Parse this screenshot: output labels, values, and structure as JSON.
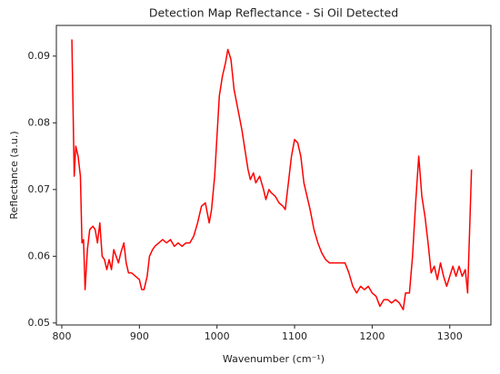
{
  "chart_data": {
    "type": "line",
    "title": "Detection Map Reflectance - Si Oil Detected",
    "x_label": "Wavenumber (cm⁻¹)",
    "y_label": "Reflectance (a.u.)",
    "color": "#ff0000",
    "x": [
      813,
      816,
      818,
      821,
      824,
      826,
      828,
      830,
      833,
      836,
      840,
      843,
      846,
      849,
      852,
      855,
      858,
      861,
      864,
      867,
      870,
      873,
      876,
      880,
      883,
      886,
      890,
      895,
      900,
      903,
      906,
      910,
      913,
      917,
      920,
      925,
      930,
      935,
      940,
      945,
      950,
      955,
      960,
      965,
      970,
      975,
      980,
      985,
      990,
      993,
      997,
      1000,
      1003,
      1007,
      1011,
      1014,
      1018,
      1022,
      1027,
      1032,
      1036,
      1040,
      1043,
      1047,
      1050,
      1055,
      1060,
      1063,
      1067,
      1070,
      1075,
      1080,
      1085,
      1088,
      1092,
      1096,
      1100,
      1104,
      1108,
      1112,
      1116,
      1120,
      1125,
      1130,
      1135,
      1140,
      1145,
      1150,
      1155,
      1160,
      1165,
      1170,
      1175,
      1180,
      1185,
      1190,
      1195,
      1200,
      1205,
      1210,
      1215,
      1220,
      1225,
      1230,
      1235,
      1240,
      1243,
      1248,
      1252,
      1256,
      1260,
      1264,
      1268,
      1272,
      1276,
      1280,
      1284,
      1288,
      1292,
      1296,
      1300,
      1304,
      1308,
      1312,
      1316,
      1320,
      1323,
      1326,
      1328
    ],
    "values": [
      0.0925,
      0.072,
      0.0765,
      0.075,
      0.072,
      0.062,
      0.0625,
      0.055,
      0.061,
      0.064,
      0.0645,
      0.064,
      0.062,
      0.065,
      0.06,
      0.0595,
      0.058,
      0.0595,
      0.058,
      0.061,
      0.06,
      0.059,
      0.0605,
      0.062,
      0.059,
      0.0575,
      0.0575,
      0.057,
      0.0565,
      0.055,
      0.055,
      0.057,
      0.06,
      0.061,
      0.0615,
      0.062,
      0.0625,
      0.062,
      0.0625,
      0.0615,
      0.062,
      0.0615,
      0.062,
      0.062,
      0.063,
      0.065,
      0.0675,
      0.068,
      0.065,
      0.067,
      0.072,
      0.078,
      0.084,
      0.087,
      0.089,
      0.091,
      0.0895,
      0.085,
      0.082,
      0.079,
      0.076,
      0.073,
      0.0715,
      0.0725,
      0.071,
      0.072,
      0.07,
      0.0685,
      0.07,
      0.0695,
      0.069,
      0.068,
      0.0675,
      0.067,
      0.071,
      0.075,
      0.0775,
      0.077,
      0.075,
      0.071,
      0.069,
      0.067,
      0.064,
      0.062,
      0.0605,
      0.0595,
      0.059,
      0.059,
      0.059,
      0.059,
      0.059,
      0.0575,
      0.0555,
      0.0545,
      0.0555,
      0.055,
      0.0555,
      0.0545,
      0.054,
      0.0525,
      0.0535,
      0.0535,
      0.053,
      0.0535,
      0.053,
      0.052,
      0.0545,
      0.0545,
      0.06,
      0.068,
      0.075,
      0.069,
      0.066,
      0.062,
      0.0575,
      0.0585,
      0.0565,
      0.059,
      0.057,
      0.0555,
      0.057,
      0.0585,
      0.057,
      0.0585,
      0.057,
      0.058,
      0.0545,
      0.0655,
      0.073
    ],
    "xlim": [
      793,
      1353
    ],
    "ylim": [
      0.0497,
      0.0946
    ],
    "xticks": [
      800,
      900,
      1000,
      1100,
      1200,
      1300
    ],
    "yticks": [
      0.05,
      0.06,
      0.07,
      0.08,
      0.09
    ],
    "grid": false
  }
}
